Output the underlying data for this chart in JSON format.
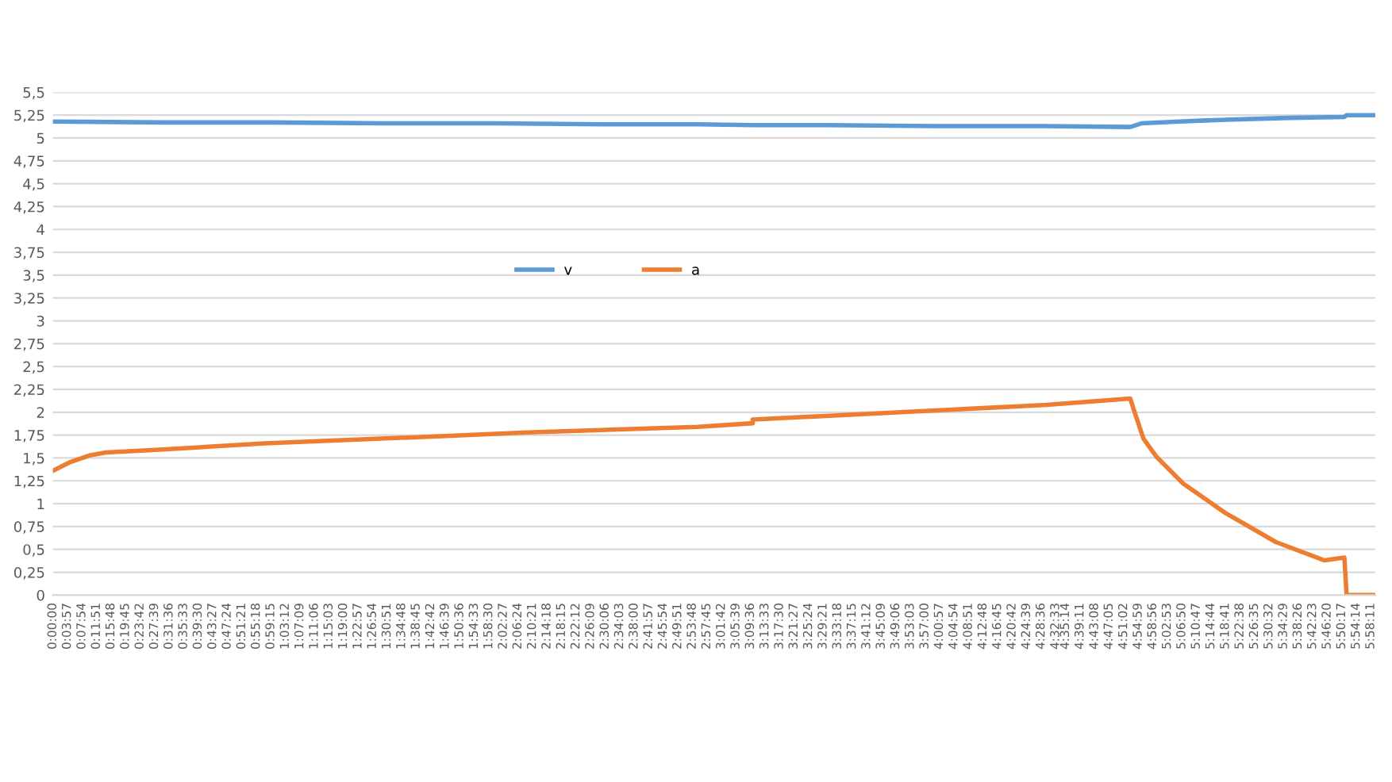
{
  "chart_data": {
    "type": "line",
    "legend": "center",
    "grid": "y",
    "line_style": "solid",
    "marker": "none",
    "xlim": [
      0,
      5.99
    ],
    "ylim": [
      0,
      5.5
    ],
    "yticks": [
      0,
      {
        "value": 0.25,
        "label": "0,25"
      },
      {
        "value": 0.5,
        "label": "0,5"
      },
      {
        "value": 0.75,
        "label": "0,75"
      },
      1,
      {
        "value": 1.25,
        "label": "1,25"
      },
      {
        "value": 1.5,
        "label": "1,5"
      },
      {
        "value": 1.75,
        "label": "1,75"
      },
      2,
      {
        "value": 2.25,
        "label": "2,25"
      },
      {
        "value": 2.5,
        "label": "2,5"
      },
      {
        "value": 2.75,
        "label": "2,75"
      },
      3,
      {
        "value": 3.25,
        "label": "3,25"
      },
      {
        "value": 3.5,
        "label": "3,5"
      },
      {
        "value": 3.75,
        "label": "3,75"
      },
      4,
      {
        "value": 4.25,
        "label": "4,25"
      },
      {
        "value": 4.5,
        "label": "4,5"
      },
      {
        "value": 4.75,
        "label": "4,75"
      },
      5,
      {
        "value": 5.25,
        "label": "5,25"
      },
      {
        "value": 5.5,
        "label": "5,5"
      }
    ],
    "xticks": [
      {
        "value": 0,
        "label": "0:00:00"
      },
      {
        "value": 0.0658,
        "label": "0:03:57"
      },
      {
        "value": 0.1317,
        "label": "0:07:54"
      },
      {
        "value": 0.1975,
        "label": "0:11:51"
      },
      {
        "value": 0.2633,
        "label": "0:15:48"
      },
      {
        "value": 0.3292,
        "label": "0:19:45"
      },
      {
        "value": 0.395,
        "label": "0:23:42"
      },
      {
        "value": 0.4608,
        "label": "0:27:39"
      },
      {
        "value": 0.5267,
        "label": "0:31:36"
      },
      {
        "value": 0.5925,
        "label": "0:35:33"
      },
      {
        "value": 0.6583,
        "label": "0:39:30"
      },
      {
        "value": 0.7242,
        "label": "0:43:27"
      },
      {
        "value": 0.79,
        "label": "0:47:24"
      },
      {
        "value": 0.8558,
        "label": "0:51:21"
      },
      {
        "value": 0.9217,
        "label": "0:55:18"
      },
      {
        "value": 0.9875,
        "label": "0:59:15"
      },
      {
        "value": 1.0533,
        "label": "1:03:12"
      },
      {
        "value": 1.1192,
        "label": "1:07:09"
      },
      {
        "value": 1.185,
        "label": "1:11:06"
      },
      {
        "value": 1.2508,
        "label": "1:15:03"
      },
      {
        "value": 1.3167,
        "label": "1:19:00"
      },
      {
        "value": 1.3825,
        "label": "1:22:57"
      },
      {
        "value": 1.4483,
        "label": "1:26:54"
      },
      {
        "value": 1.5142,
        "label": "1:30:51"
      },
      {
        "value": 1.58,
        "label": "1:34:48"
      },
      {
        "value": 1.6458,
        "label": "1:38:45"
      },
      {
        "value": 1.7117,
        "label": "1:42:42"
      },
      {
        "value": 1.7775,
        "label": "1:46:39"
      },
      {
        "value": 1.8433,
        "label": "1:50:36"
      },
      {
        "value": 1.9092,
        "label": "1:54:33"
      },
      {
        "value": 1.975,
        "label": "1:58:30"
      },
      {
        "value": 2.0408,
        "label": "2:02:27"
      },
      {
        "value": 2.1067,
        "label": "2:06:24"
      },
      {
        "value": 2.1725,
        "label": "2:10:21"
      },
      {
        "value": 2.2383,
        "label": "2:14:18"
      },
      {
        "value": 2.3042,
        "label": "2:18:15"
      },
      {
        "value": 2.37,
        "label": "2:22:12"
      },
      {
        "value": 2.4358,
        "label": "2:26:09"
      },
      {
        "value": 2.5017,
        "label": "2:30:06"
      },
      {
        "value": 2.5675,
        "label": "2:34:03"
      },
      {
        "value": 2.6333,
        "label": "2:38:00"
      },
      {
        "value": 2.6992,
        "label": "2:41:57"
      },
      {
        "value": 2.765,
        "label": "2:45:54"
      },
      {
        "value": 2.8308,
        "label": "2:49:51"
      },
      {
        "value": 2.8967,
        "label": "2:53:48"
      },
      {
        "value": 2.9625,
        "label": "2:57:45"
      },
      {
        "value": 3.0283,
        "label": "3:01:42"
      },
      {
        "value": 3.0942,
        "label": "3:05:39"
      },
      {
        "value": 3.16,
        "label": "3:09:36"
      },
      {
        "value": 3.2258,
        "label": "3:13:33"
      },
      {
        "value": 3.2917,
        "label": "3:17:30"
      },
      {
        "value": 3.3575,
        "label": "3:21:27"
      },
      {
        "value": 3.4233,
        "label": "3:25:24"
      },
      {
        "value": 3.4892,
        "label": "3:29:21"
      },
      {
        "value": 3.555,
        "label": "3:33:18"
      },
      {
        "value": 3.6208,
        "label": "3:37:15"
      },
      {
        "value": 3.6867,
        "label": "3:41:12"
      },
      {
        "value": 3.7525,
        "label": "3:45:09"
      },
      {
        "value": 3.8183,
        "label": "3:49:06"
      },
      {
        "value": 3.8842,
        "label": "3:53:03"
      },
      {
        "value": 3.95,
        "label": "3:57:00"
      },
      {
        "value": 4.0158,
        "label": "4:00:57"
      },
      {
        "value": 4.0817,
        "label": "4:04:54"
      },
      {
        "value": 4.1475,
        "label": "4:08:51"
      },
      {
        "value": 4.2133,
        "label": "4:12:48"
      },
      {
        "value": 4.2792,
        "label": "4:16:45"
      },
      {
        "value": 4.345,
        "label": "4:20:42"
      },
      {
        "value": 4.4108,
        "label": "4:24:39"
      },
      {
        "value": 4.4767,
        "label": "4:28:36"
      },
      {
        "value": 4.5425,
        "label": "4:32:33"
      },
      {
        "value": 4.5872,
        "label": "4:35:14"
      },
      {
        "value": 4.6531,
        "label": "4:39:11"
      },
      {
        "value": 4.7189,
        "label": "4:43:08"
      },
      {
        "value": 4.7847,
        "label": "4:47:05"
      },
      {
        "value": 4.8506,
        "label": "4:51:02"
      },
      {
        "value": 4.9164,
        "label": "4:54:59"
      },
      {
        "value": 4.9822,
        "label": "4:58:56"
      },
      {
        "value": 5.0481,
        "label": "5:02:53"
      },
      {
        "value": 5.1139,
        "label": "5:06:50"
      },
      {
        "value": 5.1797,
        "label": "5:10:47"
      },
      {
        "value": 5.2456,
        "label": "5:14:44"
      },
      {
        "value": 5.3114,
        "label": "5:18:41"
      },
      {
        "value": 5.3772,
        "label": "5:22:38"
      },
      {
        "value": 5.4431,
        "label": "5:26:35"
      },
      {
        "value": 5.5089,
        "label": "5:30:32"
      },
      {
        "value": 5.5747,
        "label": "5:34:29"
      },
      {
        "value": 5.6406,
        "label": "5:38:26"
      },
      {
        "value": 5.7064,
        "label": "5:42:23"
      },
      {
        "value": 5.7722,
        "label": "5:46:20"
      },
      {
        "value": 5.8381,
        "label": "5:50:17"
      },
      {
        "value": 5.9039,
        "label": "5:54:14"
      },
      {
        "value": 5.9697,
        "label": "5:58:11"
      }
    ],
    "series": [
      {
        "name": "v",
        "color": "#5b9bd5",
        "x": [
          0,
          0.5,
          1.0,
          1.5,
          2.0,
          2.5,
          2.92,
          3.17,
          3.5,
          4.0,
          4.5,
          4.88,
          4.93,
          5.1,
          5.31,
          5.6,
          5.85,
          5.86,
          5.98
        ],
        "values": [
          5.18,
          5.17,
          5.17,
          5.16,
          5.16,
          5.15,
          5.15,
          5.14,
          5.14,
          5.13,
          5.13,
          5.12,
          5.16,
          5.18,
          5.2,
          5.22,
          5.23,
          5.25,
          5.25
        ]
      },
      {
        "name": "a",
        "color": "#ed7d31",
        "x": [
          0,
          0.074,
          0.17,
          0.24,
          0.48,
          0.96,
          1.675,
          2.15,
          2.92,
          3.17,
          3.17,
          3.5,
          4.0,
          4.5,
          4.88,
          4.9,
          4.94,
          5.0,
          5.12,
          5.31,
          5.54,
          5.76,
          5.85,
          5.86,
          5.98
        ],
        "values": [
          1.36,
          1.45,
          1.53,
          1.56,
          1.59,
          1.66,
          1.73,
          1.78,
          1.84,
          1.88,
          1.92,
          1.96,
          2.02,
          2.08,
          2.15,
          2.0,
          1.71,
          1.51,
          1.22,
          0.9,
          0.58,
          0.38,
          0.41,
          0,
          0
        ]
      }
    ]
  }
}
